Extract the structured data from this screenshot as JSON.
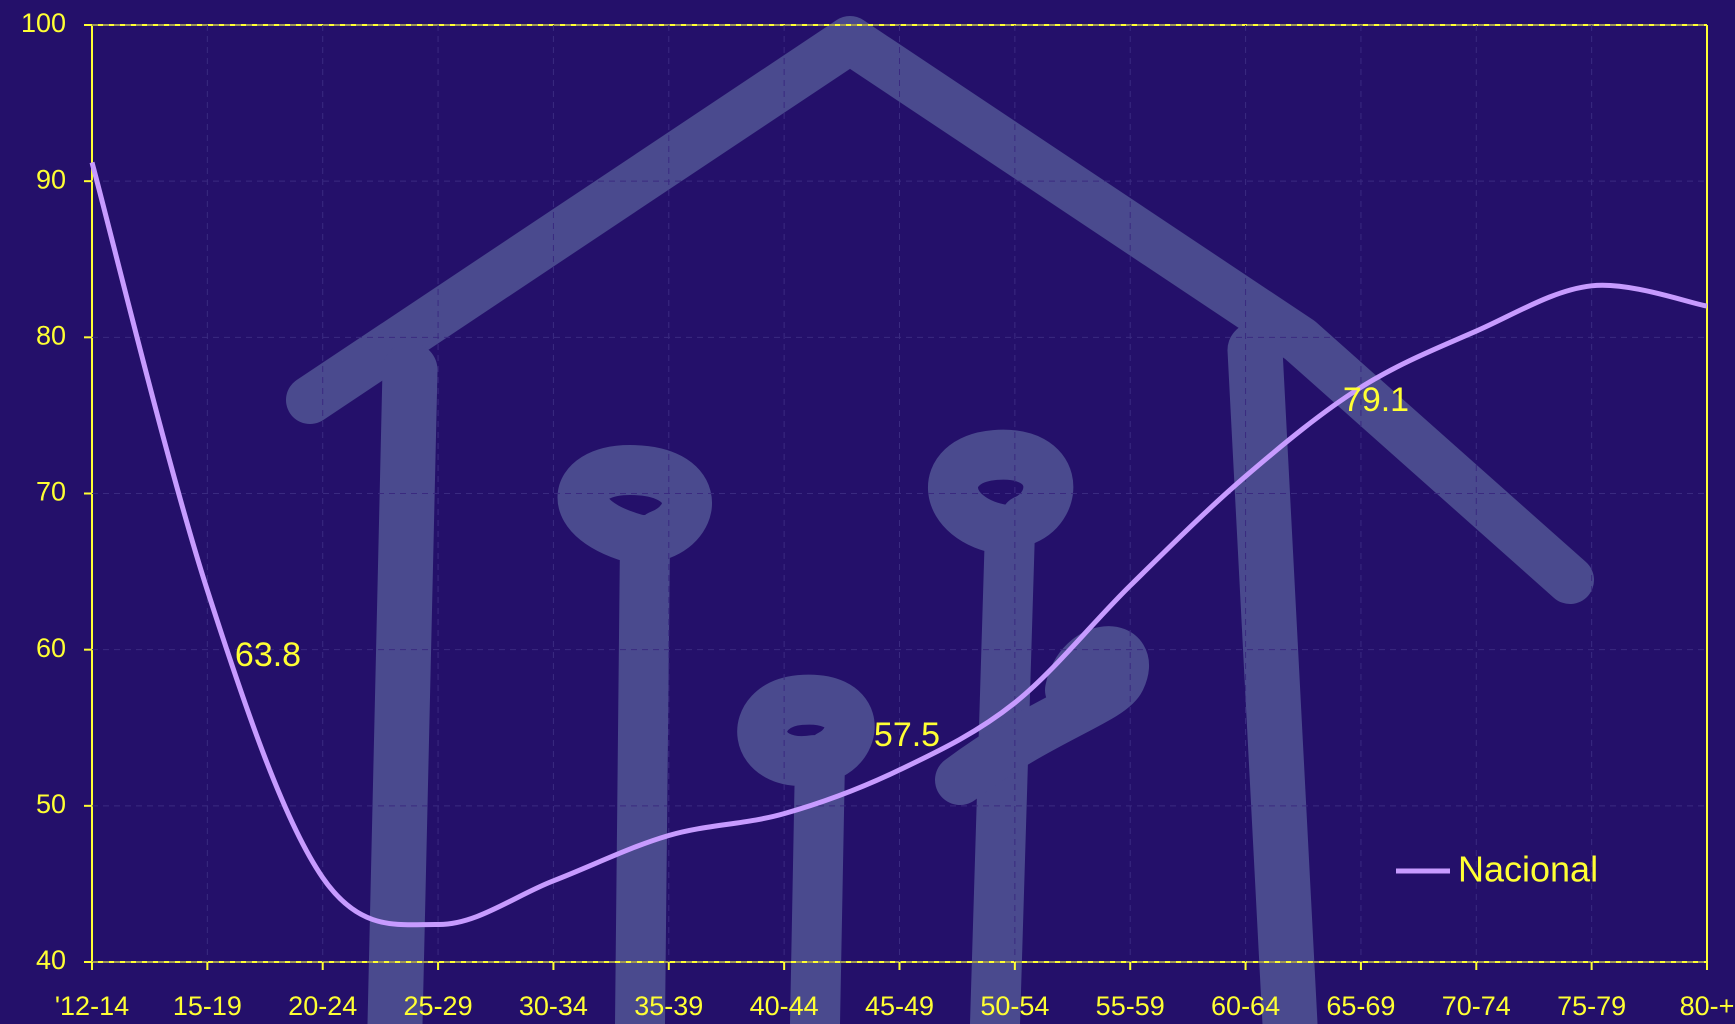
{
  "chart_data": {
    "type": "line",
    "categories": [
      "'12-14",
      "15-19",
      "20-24",
      "25-29",
      "30-34",
      "35-39",
      "40-44",
      "45-49",
      "50-54",
      "55-59",
      "60-64",
      "65-69",
      "70-74",
      "75-79",
      "80-+"
    ],
    "series": [
      {
        "name": "Nacional",
        "color": "#c79bff",
        "values": [
          91.2,
          63.8,
          45.4,
          42.4,
          45.2,
          48.1,
          49.5,
          52.3,
          56.6,
          64.1,
          71.1,
          76.8,
          80.4,
          83.3,
          82.0
        ]
      }
    ],
    "annotations": [
      "63.8",
      "57.5",
      "79.1"
    ],
    "ylim": [
      40,
      100
    ],
    "yticks": [
      40,
      50,
      60,
      70,
      80,
      90,
      100
    ],
    "grid": true,
    "legend": "bottom-right"
  }
}
